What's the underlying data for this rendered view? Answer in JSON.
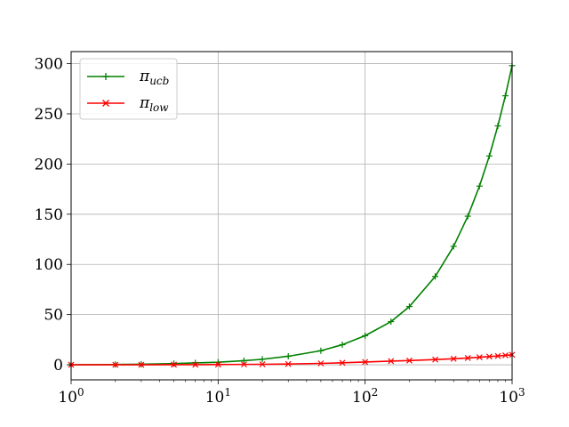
{
  "chart_data": {
    "type": "line",
    "x_scale": "log",
    "xlim": [
      1,
      1000
    ],
    "ylim": [
      -15,
      312
    ],
    "grid": true,
    "legend_position": "top-left",
    "x_ticks": [
      {
        "value": 1,
        "base": "10",
        "exp": "0"
      },
      {
        "value": 10,
        "base": "10",
        "exp": "1"
      },
      {
        "value": 100,
        "base": "10",
        "exp": "2"
      },
      {
        "value": 1000,
        "base": "10",
        "exp": "3"
      }
    ],
    "y_ticks": [
      {
        "value": 0,
        "label": "0"
      },
      {
        "value": 50,
        "label": "50"
      },
      {
        "value": 100,
        "label": "100"
      },
      {
        "value": 150,
        "label": "150"
      },
      {
        "value": 200,
        "label": "200"
      },
      {
        "value": 250,
        "label": "250"
      },
      {
        "value": 300,
        "label": "300"
      }
    ],
    "series": [
      {
        "name_main": "π",
        "name_sub": "ucb",
        "color": "#008000",
        "marker": "+",
        "x": [
          1,
          2,
          3,
          5,
          7,
          10,
          15,
          20,
          30,
          50,
          70,
          100,
          150,
          200,
          300,
          400,
          500,
          600,
          700,
          800,
          900,
          1000
        ],
        "y": [
          0,
          0.3,
          0.6,
          1.2,
          1.9,
          2.6,
          4.1,
          5.5,
          8.5,
          14,
          20,
          29,
          43,
          58,
          88,
          118,
          148,
          178,
          208,
          238,
          268,
          298
        ]
      },
      {
        "name_main": "π",
        "name_sub": "low",
        "color": "#ff0000",
        "marker": "x",
        "x": [
          1,
          2,
          3,
          5,
          7,
          10,
          15,
          20,
          30,
          50,
          70,
          100,
          150,
          200,
          300,
          400,
          500,
          600,
          700,
          800,
          900,
          1000
        ],
        "y": [
          0,
          0.02,
          0.05,
          0.1,
          0.15,
          0.25,
          0.4,
          0.5,
          0.8,
          1.4,
          2,
          2.8,
          3.7,
          4.2,
          5.2,
          6,
          6.8,
          7.5,
          8.2,
          8.8,
          9.4,
          10
        ]
      }
    ]
  }
}
